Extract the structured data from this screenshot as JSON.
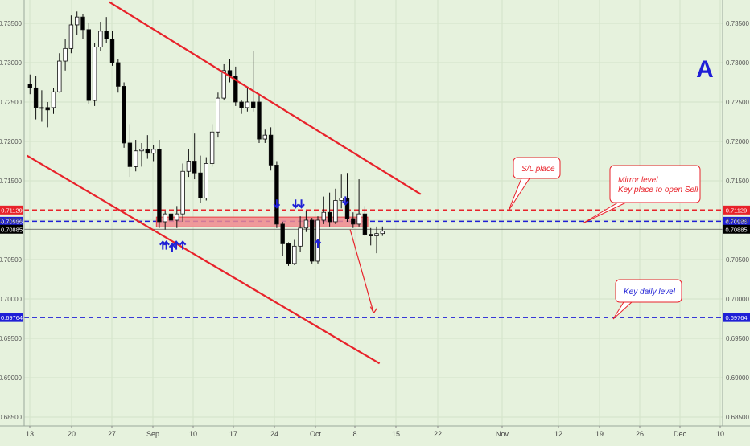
{
  "chart_data": {
    "type": "candlestick",
    "y_ticks": [
      "0.73500",
      "0.73000",
      "0.72500",
      "0.72000",
      "0.71500",
      "0.71000",
      "0.70500",
      "0.70000",
      "0.69500",
      "0.69000",
      "0.68500"
    ],
    "x_ticks": [
      "13",
      "20",
      "27",
      "Sep",
      "10",
      "17",
      "24",
      "Oct",
      "8",
      "15",
      "22",
      "Nov",
      "12",
      "19",
      "26",
      "Dec",
      "10"
    ],
    "ylim": [
      0.6845,
      0.7367
    ],
    "candles": [
      {
        "o": 0.7273,
        "h": 0.7285,
        "c": 0.7268,
        "l": 0.726
      },
      {
        "o": 0.7268,
        "h": 0.7283,
        "c": 0.7243,
        "l": 0.7228
      },
      {
        "o": 0.7243,
        "h": 0.7265,
        "c": 0.7243,
        "l": 0.7225
      },
      {
        "o": 0.7243,
        "h": 0.725,
        "c": 0.724,
        "l": 0.7218
      },
      {
        "o": 0.7243,
        "h": 0.7268,
        "c": 0.7263,
        "l": 0.7235
      },
      {
        "o": 0.7263,
        "h": 0.7312,
        "c": 0.7302,
        "l": 0.7262
      },
      {
        "o": 0.7302,
        "h": 0.733,
        "c": 0.7318,
        "l": 0.729
      },
      {
        "o": 0.7318,
        "h": 0.736,
        "c": 0.7348,
        "l": 0.7312
      },
      {
        "o": 0.7348,
        "h": 0.7365,
        "c": 0.7358,
        "l": 0.7335
      },
      {
        "o": 0.7358,
        "h": 0.7362,
        "c": 0.7342,
        "l": 0.733
      },
      {
        "o": 0.7342,
        "h": 0.735,
        "c": 0.7252,
        "l": 0.7248
      },
      {
        "o": 0.7252,
        "h": 0.7325,
        "c": 0.732,
        "l": 0.7245
      },
      {
        "o": 0.732,
        "h": 0.7352,
        "c": 0.734,
        "l": 0.7315
      },
      {
        "o": 0.734,
        "h": 0.7358,
        "c": 0.733,
        "l": 0.7325
      },
      {
        "o": 0.733,
        "h": 0.734,
        "c": 0.73,
        "l": 0.7296
      },
      {
        "o": 0.73,
        "h": 0.7305,
        "c": 0.727,
        "l": 0.7262
      },
      {
        "o": 0.727,
        "h": 0.7275,
        "c": 0.7198,
        "l": 0.7192
      },
      {
        "o": 0.7198,
        "h": 0.7222,
        "c": 0.7168,
        "l": 0.7155
      },
      {
        "o": 0.7168,
        "h": 0.7202,
        "c": 0.7188,
        "l": 0.7162
      },
      {
        "o": 0.7188,
        "h": 0.7198,
        "c": 0.719,
        "l": 0.7168
      },
      {
        "o": 0.719,
        "h": 0.7208,
        "c": 0.7185,
        "l": 0.7178
      },
      {
        "o": 0.7185,
        "h": 0.7195,
        "c": 0.719,
        "l": 0.7175
      },
      {
        "o": 0.719,
        "h": 0.7202,
        "c": 0.7098,
        "l": 0.709
      },
      {
        "o": 0.7098,
        "h": 0.7112,
        "c": 0.7108,
        "l": 0.7088
      },
      {
        "o": 0.7108,
        "h": 0.7112,
        "c": 0.71,
        "l": 0.7088
      },
      {
        "o": 0.71,
        "h": 0.7118,
        "c": 0.7108,
        "l": 0.709
      },
      {
        "o": 0.7108,
        "h": 0.7172,
        "c": 0.7162,
        "l": 0.7098
      },
      {
        "o": 0.7162,
        "h": 0.719,
        "c": 0.7175,
        "l": 0.7155
      },
      {
        "o": 0.7175,
        "h": 0.721,
        "c": 0.716,
        "l": 0.7152
      },
      {
        "o": 0.716,
        "h": 0.7182,
        "c": 0.7128,
        "l": 0.7122
      },
      {
        "o": 0.7128,
        "h": 0.718,
        "c": 0.7172,
        "l": 0.7125
      },
      {
        "o": 0.7172,
        "h": 0.7222,
        "c": 0.7212,
        "l": 0.7168
      },
      {
        "o": 0.7212,
        "h": 0.7262,
        "c": 0.7255,
        "l": 0.7205
      },
      {
        "o": 0.7255,
        "h": 0.7298,
        "c": 0.729,
        "l": 0.7252
      },
      {
        "o": 0.729,
        "h": 0.7305,
        "c": 0.7283,
        "l": 0.7275
      },
      {
        "o": 0.7283,
        "h": 0.7295,
        "c": 0.725,
        "l": 0.7245
      },
      {
        "o": 0.725,
        "h": 0.7252,
        "c": 0.7243,
        "l": 0.7235
      },
      {
        "o": 0.7243,
        "h": 0.7268,
        "c": 0.725,
        "l": 0.7238
      },
      {
        "o": 0.725,
        "h": 0.7315,
        "c": 0.7243,
        "l": 0.7238
      },
      {
        "o": 0.725,
        "h": 0.726,
        "c": 0.7203,
        "l": 0.7198
      },
      {
        "o": 0.7203,
        "h": 0.7215,
        "c": 0.7208,
        "l": 0.7198
      },
      {
        "o": 0.7208,
        "h": 0.7218,
        "c": 0.717,
        "l": 0.7163
      },
      {
        "o": 0.717,
        "h": 0.7175,
        "c": 0.7095,
        "l": 0.709
      },
      {
        "o": 0.7095,
        "h": 0.7098,
        "c": 0.707,
        "l": 0.7055
      },
      {
        "o": 0.707,
        "h": 0.7072,
        "c": 0.7045,
        "l": 0.7042
      },
      {
        "o": 0.7045,
        "h": 0.7075,
        "c": 0.7067,
        "l": 0.7043
      },
      {
        "o": 0.7067,
        "h": 0.7105,
        "c": 0.709,
        "l": 0.706
      },
      {
        "o": 0.709,
        "h": 0.7112,
        "c": 0.71,
        "l": 0.7085
      },
      {
        "o": 0.71,
        "h": 0.7103,
        "c": 0.7048,
        "l": 0.7045
      },
      {
        "o": 0.7048,
        "h": 0.7105,
        "c": 0.71,
        "l": 0.7045
      },
      {
        "o": 0.71,
        "h": 0.713,
        "c": 0.711,
        "l": 0.7095
      },
      {
        "o": 0.711,
        "h": 0.7135,
        "c": 0.7098,
        "l": 0.7092
      },
      {
        "o": 0.7098,
        "h": 0.714,
        "c": 0.7125,
        "l": 0.7095
      },
      {
        "o": 0.7125,
        "h": 0.7158,
        "c": 0.7128,
        "l": 0.7115
      },
      {
        "o": 0.7128,
        "h": 0.716,
        "c": 0.7102,
        "l": 0.7098
      },
      {
        "o": 0.7102,
        "h": 0.711,
        "c": 0.7095,
        "l": 0.709
      },
      {
        "o": 0.7095,
        "h": 0.7152,
        "c": 0.7108,
        "l": 0.7092
      },
      {
        "o": 0.7108,
        "h": 0.7118,
        "c": 0.7082,
        "l": 0.708
      },
      {
        "o": 0.7082,
        "h": 0.709,
        "c": 0.708,
        "l": 0.7068
      },
      {
        "o": 0.708,
        "h": 0.7092,
        "c": 0.7083,
        "l": 0.7058
      },
      {
        "o": 0.7083,
        "h": 0.7092,
        "c": 0.7086,
        "l": 0.708
      }
    ],
    "levels": [
      {
        "value": 0.71129,
        "label": "0.71129",
        "color": "#e8222a",
        "style": "dashed"
      },
      {
        "value": 0.70986,
        "label": "0.70986",
        "color": "#1f1fd6",
        "style": "dashed"
      },
      {
        "value": 0.70885,
        "label": "0.70885",
        "color": "#000000",
        "style": "solid-current"
      },
      {
        "value": 0.69764,
        "label": "0.69764",
        "color": "#1f1fd6",
        "style": "dashed"
      }
    ],
    "channel_lines": [
      {
        "from": {
          "bar": 13.5,
          "y": 0.7377
        },
        "to": {
          "bar": 66.5,
          "y": 0.7133
        },
        "color": "#e8222a"
      },
      {
        "from": {
          "bar": -0.5,
          "y": 0.7182
        },
        "to": {
          "bar": 59.5,
          "y": 0.6918
        },
        "color": "#e8222a"
      }
    ],
    "zone": {
      "bar_start": 21.5,
      "bar_end": 57.5,
      "top": 0.7104,
      "bottom": 0.70915,
      "color": "#f08a8e"
    },
    "sell_arrow": {
      "from": {
        "bar": 54.5,
        "y": 0.7088
      },
      "to": {
        "bar": 58.5,
        "y": 0.6982
      }
    },
    "markers_up": [
      {
        "bar": 22.6,
        "y": 0.7083
      },
      {
        "bar": 23.2,
        "y": 0.7083
      },
      {
        "bar": 24.2,
        "y": 0.708
      },
      {
        "bar": 24.9,
        "y": 0.7083
      },
      {
        "bar": 26.0,
        "y": 0.7083
      },
      {
        "bar": 49.0,
        "y": 0.7085
      }
    ],
    "markers_down": [
      {
        "bar": 42.0,
        "y": 0.7112
      },
      {
        "bar": 45.2,
        "y": 0.7112
      },
      {
        "bar": 46.2,
        "y": 0.7112
      },
      {
        "bar": 53.7,
        "y": 0.7116
      }
    ],
    "annotations": [
      {
        "text": "S/L place",
        "lines": [
          "S/L place"
        ]
      },
      {
        "text": "Mirror level Key place to open Sell",
        "lines": [
          "Mirror level",
          "Key place to open Sell"
        ]
      },
      {
        "text": "Key daily level",
        "lines": [
          "Key daily level"
        ]
      }
    ],
    "corner_label": "A",
    "colors": {
      "background": "#e6f2dd",
      "grid": "#d3e3c9",
      "red": "#e8222a",
      "blue": "#1f1fd6",
      "bull": "#ffffff",
      "bear": "#000000"
    },
    "grid": true
  }
}
